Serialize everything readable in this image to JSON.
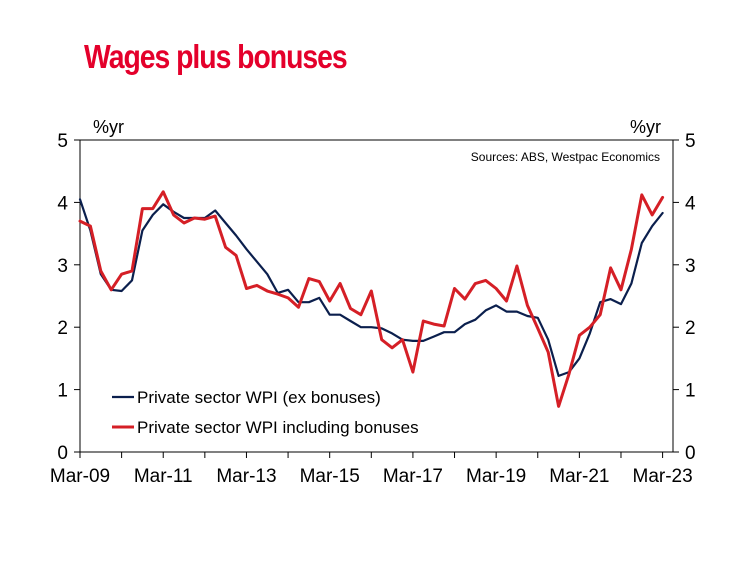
{
  "chart_data": {
    "type": "line",
    "title": "Wages plus bonuses",
    "ylabel_left": "%yr",
    "ylabel_right": "%yr",
    "source_note": "Sources: ABS, Westpac Economics",
    "ylim": [
      0,
      5
    ],
    "y_ticks": [
      "0",
      "1",
      "2",
      "3",
      "4",
      "5"
    ],
    "x_start": 2009.0,
    "x_end": 2023.25,
    "x_tick_labels": [
      "Mar-09",
      "Mar-11",
      "Mar-13",
      "Mar-15",
      "Mar-17",
      "Mar-19",
      "Mar-21",
      "Mar-23"
    ],
    "x_tick_positions": [
      2009.0,
      2011.0,
      2013.0,
      2015.0,
      2017.0,
      2019.0,
      2021.0,
      2023.0
    ],
    "legend_position": "bottom-left",
    "series": [
      {
        "name": "Private sector WPI (ex bonuses)",
        "color": "#0b1f4d",
        "x": [
          2009.0,
          2009.25,
          2009.5,
          2009.75,
          2010.0,
          2010.25,
          2010.5,
          2010.75,
          2011.0,
          2011.25,
          2011.5,
          2011.75,
          2012.0,
          2012.25,
          2012.5,
          2012.75,
          2013.0,
          2013.25,
          2013.5,
          2013.75,
          2014.0,
          2014.25,
          2014.5,
          2014.75,
          2015.0,
          2015.25,
          2015.5,
          2015.75,
          2016.0,
          2016.25,
          2016.5,
          2016.75,
          2017.0,
          2017.25,
          2017.5,
          2017.75,
          2018.0,
          2018.25,
          2018.5,
          2018.75,
          2019.0,
          2019.25,
          2019.5,
          2019.75,
          2020.0,
          2020.25,
          2020.5,
          2020.75,
          2021.0,
          2021.25,
          2021.5,
          2021.75,
          2022.0,
          2022.25,
          2022.5,
          2022.75,
          2023.0
        ],
        "values": [
          4.05,
          3.55,
          2.85,
          2.6,
          2.58,
          2.75,
          3.55,
          3.8,
          3.97,
          3.85,
          3.75,
          3.75,
          3.75,
          3.87,
          3.67,
          3.47,
          3.25,
          3.05,
          2.85,
          2.55,
          2.6,
          2.4,
          2.4,
          2.47,
          2.2,
          2.2,
          2.1,
          2.0,
          2.0,
          1.98,
          1.9,
          1.8,
          1.78,
          1.78,
          1.85,
          1.92,
          1.92,
          2.05,
          2.12,
          2.27,
          2.35,
          2.25,
          2.25,
          2.18,
          2.15,
          1.8,
          1.22,
          1.28,
          1.5,
          1.9,
          2.4,
          2.45,
          2.37,
          2.7,
          3.35,
          3.62,
          3.83
        ]
      },
      {
        "name": "Private sector WPI including bonuses",
        "color": "#d51f26",
        "x": [
          2009.0,
          2009.25,
          2009.5,
          2009.75,
          2010.0,
          2010.25,
          2010.5,
          2010.75,
          2011.0,
          2011.25,
          2011.5,
          2011.75,
          2012.0,
          2012.25,
          2012.5,
          2012.75,
          2013.0,
          2013.25,
          2013.5,
          2013.75,
          2014.0,
          2014.25,
          2014.5,
          2014.75,
          2015.0,
          2015.25,
          2015.5,
          2015.75,
          2016.0,
          2016.25,
          2016.5,
          2016.75,
          2017.0,
          2017.25,
          2017.5,
          2017.75,
          2018.0,
          2018.25,
          2018.5,
          2018.75,
          2019.0,
          2019.25,
          2019.5,
          2019.75,
          2020.0,
          2020.25,
          2020.5,
          2020.75,
          2021.0,
          2021.25,
          2021.5,
          2021.75,
          2022.0,
          2022.25,
          2022.5,
          2022.75,
          2023.0
        ],
        "values": [
          3.7,
          3.62,
          2.9,
          2.6,
          2.85,
          2.9,
          3.9,
          3.9,
          4.17,
          3.8,
          3.67,
          3.75,
          3.73,
          3.78,
          3.28,
          3.15,
          2.62,
          2.67,
          2.58,
          2.53,
          2.47,
          2.32,
          2.78,
          2.73,
          2.42,
          2.7,
          2.3,
          2.2,
          2.58,
          1.8,
          1.67,
          1.8,
          1.28,
          2.1,
          2.05,
          2.02,
          2.62,
          2.45,
          2.7,
          2.75,
          2.62,
          2.42,
          2.98,
          2.35,
          1.98,
          1.6,
          0.73,
          1.25,
          1.87,
          2.0,
          2.2,
          2.95,
          2.6,
          3.25,
          4.12,
          3.8,
          4.08
        ]
      }
    ]
  }
}
